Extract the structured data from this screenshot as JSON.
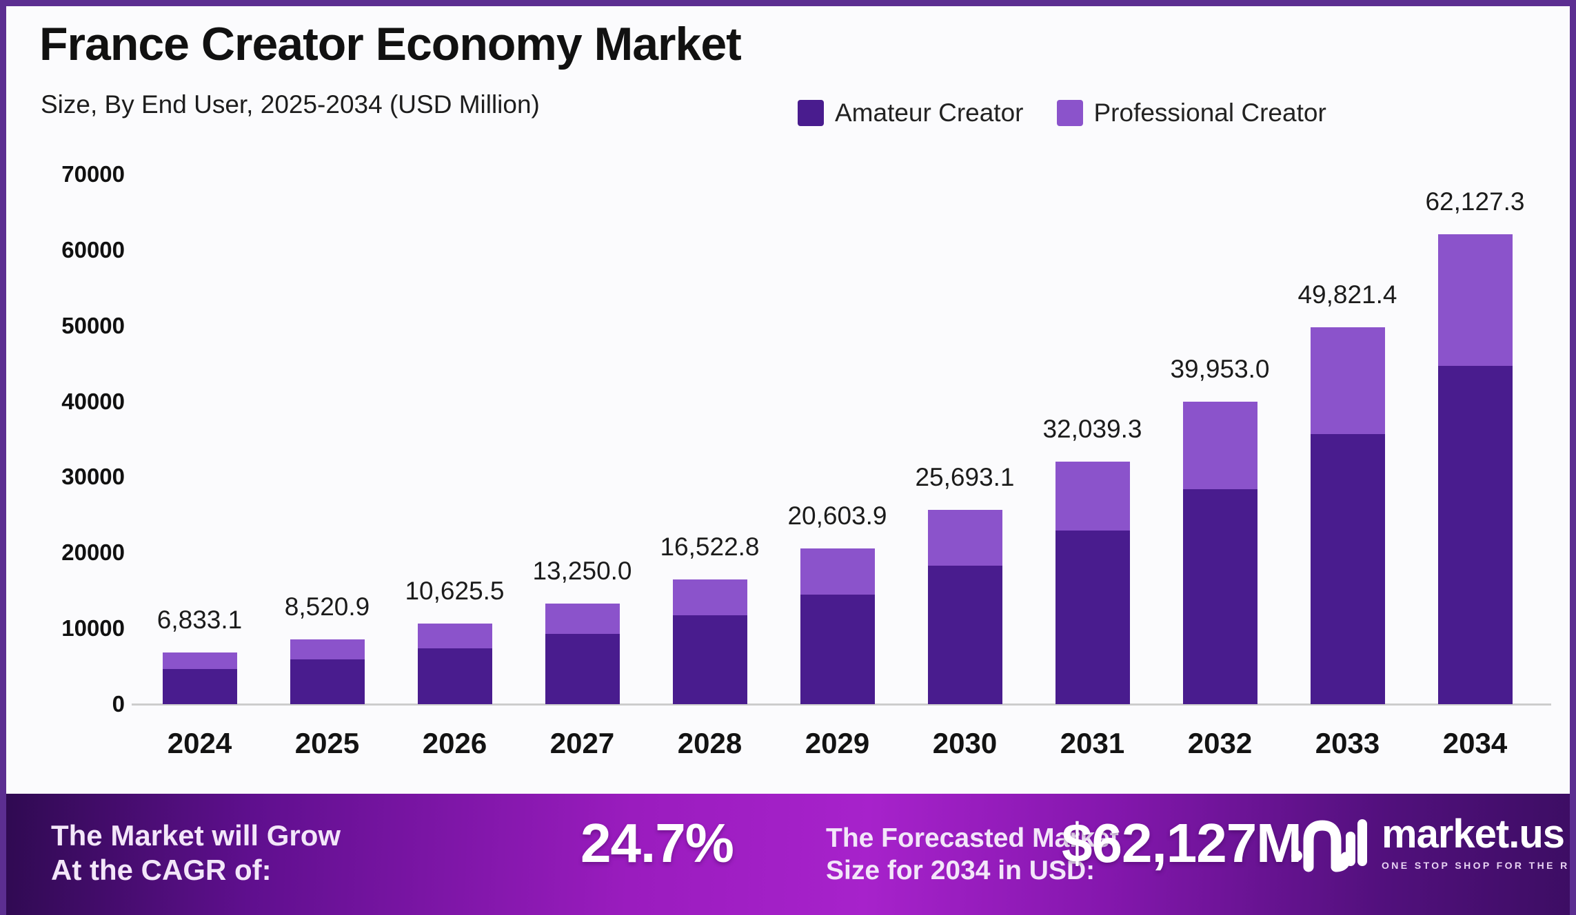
{
  "frame": {
    "border_color": "#5c2e91",
    "background": "#fbfbfd"
  },
  "header": {
    "title": "France Creator Economy Market",
    "subtitle": "Size, By End User, 2025-2034 (USD Million)"
  },
  "legend": {
    "items": [
      {
        "label": "Amateur Creator",
        "color": "#491c8e"
      },
      {
        "label": "Professional Creator",
        "color": "#8b53cb"
      }
    ]
  },
  "chart_data": {
    "type": "bar",
    "stacked": true,
    "title": "France Creator Economy Market Size, By End User, 2025-2034 (USD Million)",
    "categories": [
      "2024",
      "2025",
      "2026",
      "2027",
      "2028",
      "2029",
      "2030",
      "2031",
      "2032",
      "2033",
      "2034"
    ],
    "series": [
      {
        "name": "Amateur Creator",
        "color": "#491c8e",
        "values": [
          4670,
          5890,
          7380,
          9290,
          11725,
          14510,
          18340,
          22960,
          28430,
          35650,
          44670
        ]
      },
      {
        "name": "Professional Creator",
        "color": "#8b53cb",
        "values": [
          2163.1,
          2630.9,
          3245.5,
          3960.0,
          4797.8,
          6093.9,
          7353.1,
          9079.3,
          11523.0,
          14171.4,
          17457.3
        ]
      }
    ],
    "totals": [
      6833.1,
      8520.9,
      10625.5,
      13250.0,
      16522.8,
      20603.9,
      25693.1,
      32039.3,
      39953.0,
      49821.4,
      62127.3
    ],
    "total_labels": [
      "6,833.1",
      "8,520.9",
      "10,625.5",
      "13,250.0",
      "16,522.8",
      "20,603.9",
      "25,693.1",
      "32,039.3",
      "39,953.0",
      "49,821.4",
      "62,127.3"
    ],
    "y_ticks": [
      70000,
      60000,
      50000,
      40000,
      30000,
      20000,
      10000,
      0
    ],
    "ylim": [
      0,
      70000
    ],
    "xlabel": "",
    "ylabel": "",
    "grid": false,
    "legend_position": "top-right"
  },
  "footer": {
    "cagr_intro_line1": "The Market will Grow",
    "cagr_intro_line2": "At the CAGR of:",
    "cagr_value": "24.7%",
    "forecast_intro_line1": "The Forecasted Market",
    "forecast_intro_line2": "Size for 2034 in USD:",
    "forecast_value": "$62,127M",
    "brand": "market.us",
    "brand_tagline": "ONE STOP SHOP FOR THE REPORTS"
  }
}
